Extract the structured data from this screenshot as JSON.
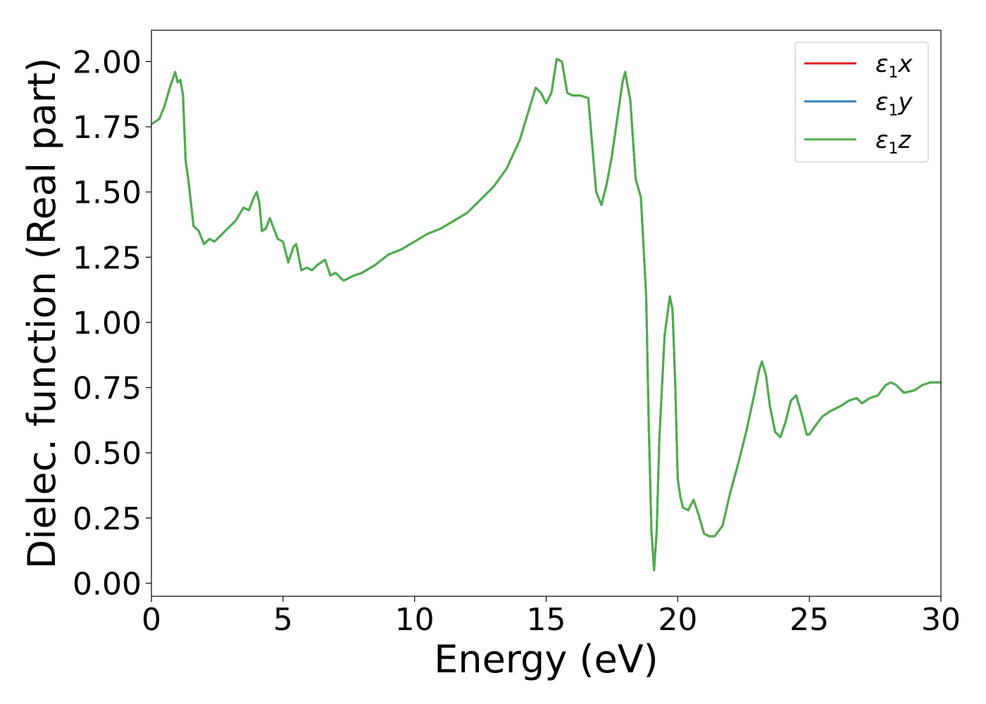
{
  "chart_data": {
    "type": "line",
    "xlabel": "Energy (eV)",
    "ylabel": "Dielec. function (Real part)",
    "xlim": [
      0,
      30
    ],
    "ylim": [
      -0.05,
      2.12
    ],
    "xticks": [
      0,
      5,
      10,
      15,
      20,
      25,
      30
    ],
    "yticks": [
      0.0,
      0.25,
      0.5,
      0.75,
      1.0,
      1.25,
      1.5,
      1.75,
      2.0
    ],
    "xtick_labels": [
      "0",
      "5",
      "10",
      "15",
      "20",
      "25",
      "30"
    ],
    "ytick_labels": [
      "0.00",
      "0.25",
      "0.50",
      "0.75",
      "1.00",
      "1.25",
      "1.50",
      "1.75",
      "2.00"
    ],
    "grid": false,
    "legend": {
      "placement": "top-right",
      "entries": [
        {
          "symbol": "ε",
          "sub": "1",
          "axis": "x",
          "color": "#e41a1c"
        },
        {
          "symbol": "ε",
          "sub": "1",
          "axis": "y",
          "color": "#377eb8"
        },
        {
          "symbol": "ε",
          "sub": "1",
          "axis": "z",
          "color": "#4daf4a"
        }
      ]
    },
    "series_colors": [
      "#e41a1c",
      "#377eb8",
      "#4daf4a"
    ],
    "x": [
      0.0,
      0.3,
      0.5,
      0.7,
      0.9,
      1.0,
      1.1,
      1.2,
      1.3,
      1.4,
      1.6,
      1.8,
      2.0,
      2.2,
      2.4,
      2.6,
      2.8,
      3.0,
      3.2,
      3.5,
      3.7,
      3.9,
      4.0,
      4.1,
      4.2,
      4.35,
      4.5,
      4.65,
      4.8,
      5.0,
      5.2,
      5.4,
      5.5,
      5.7,
      5.9,
      6.1,
      6.3,
      6.6,
      6.8,
      7.0,
      7.3,
      7.5,
      7.7,
      8.0,
      8.5,
      9.0,
      9.5,
      10.0,
      10.5,
      11.0,
      11.5,
      12.0,
      12.5,
      13.0,
      13.5,
      14.0,
      14.3,
      14.6,
      14.8,
      15.0,
      15.2,
      15.4,
      15.6,
      15.8,
      16.0,
      16.3,
      16.6,
      16.9,
      17.1,
      17.3,
      17.5,
      17.7,
      17.9,
      18.0,
      18.2,
      18.4,
      18.6,
      18.8,
      18.9,
      19.0,
      19.1,
      19.2,
      19.3,
      19.5,
      19.7,
      19.8,
      19.9,
      20.0,
      20.1,
      20.2,
      20.4,
      20.6,
      20.8,
      21.0,
      21.2,
      21.4,
      21.7,
      22.0,
      22.3,
      22.6,
      22.9,
      23.1,
      23.2,
      23.35,
      23.5,
      23.7,
      23.9,
      24.1,
      24.3,
      24.5,
      24.7,
      24.9,
      25.0,
      25.2,
      25.5,
      25.8,
      26.0,
      26.2,
      26.5,
      26.8,
      27.0,
      27.3,
      27.6,
      27.9,
      28.1,
      28.3,
      28.6,
      29.0,
      29.3,
      29.6,
      30.0
    ],
    "series": [
      {
        "values": [
          1.76,
          1.78,
          1.83,
          1.9,
          1.96,
          1.92,
          1.93,
          1.87,
          1.62,
          1.55,
          1.37,
          1.35,
          1.3,
          1.32,
          1.31,
          1.33,
          1.35,
          1.37,
          1.39,
          1.44,
          1.43,
          1.48,
          1.5,
          1.46,
          1.35,
          1.36,
          1.4,
          1.36,
          1.32,
          1.31,
          1.23,
          1.29,
          1.3,
          1.2,
          1.21,
          1.2,
          1.22,
          1.24,
          1.18,
          1.19,
          1.16,
          1.17,
          1.18,
          1.19,
          1.22,
          1.26,
          1.28,
          1.31,
          1.34,
          1.36,
          1.39,
          1.42,
          1.47,
          1.52,
          1.59,
          1.7,
          1.8,
          1.9,
          1.88,
          1.84,
          1.88,
          2.01,
          2.0,
          1.88,
          1.87,
          1.87,
          1.86,
          1.5,
          1.45,
          1.53,
          1.64,
          1.78,
          1.92,
          1.96,
          1.85,
          1.55,
          1.48,
          1.1,
          0.6,
          0.2,
          0.05,
          0.2,
          0.55,
          0.95,
          1.1,
          1.05,
          0.78,
          0.4,
          0.33,
          0.29,
          0.28,
          0.32,
          0.26,
          0.19,
          0.18,
          0.18,
          0.22,
          0.35,
          0.46,
          0.58,
          0.72,
          0.82,
          0.85,
          0.8,
          0.68,
          0.58,
          0.56,
          0.62,
          0.7,
          0.72,
          0.65,
          0.57,
          0.57,
          0.6,
          0.64,
          0.66,
          0.67,
          0.68,
          0.7,
          0.71,
          0.69,
          0.71,
          0.72,
          0.76,
          0.77,
          0.76,
          0.73,
          0.74,
          0.76,
          0.77,
          0.77
        ]
      },
      {
        "values": [
          1.76,
          1.78,
          1.83,
          1.9,
          1.96,
          1.92,
          1.93,
          1.87,
          1.62,
          1.55,
          1.37,
          1.35,
          1.3,
          1.32,
          1.31,
          1.33,
          1.35,
          1.37,
          1.39,
          1.44,
          1.43,
          1.48,
          1.5,
          1.46,
          1.35,
          1.36,
          1.4,
          1.36,
          1.32,
          1.31,
          1.23,
          1.29,
          1.3,
          1.2,
          1.21,
          1.2,
          1.22,
          1.24,
          1.18,
          1.19,
          1.16,
          1.17,
          1.18,
          1.19,
          1.22,
          1.26,
          1.28,
          1.31,
          1.34,
          1.36,
          1.39,
          1.42,
          1.47,
          1.52,
          1.59,
          1.7,
          1.8,
          1.9,
          1.88,
          1.84,
          1.88,
          2.01,
          2.0,
          1.88,
          1.87,
          1.87,
          1.86,
          1.5,
          1.45,
          1.53,
          1.64,
          1.78,
          1.92,
          1.96,
          1.85,
          1.55,
          1.48,
          1.1,
          0.6,
          0.2,
          0.05,
          0.2,
          0.55,
          0.95,
          1.1,
          1.05,
          0.78,
          0.4,
          0.33,
          0.29,
          0.28,
          0.32,
          0.26,
          0.19,
          0.18,
          0.18,
          0.22,
          0.35,
          0.46,
          0.58,
          0.72,
          0.82,
          0.85,
          0.8,
          0.68,
          0.58,
          0.56,
          0.62,
          0.7,
          0.72,
          0.65,
          0.57,
          0.57,
          0.6,
          0.64,
          0.66,
          0.67,
          0.68,
          0.7,
          0.71,
          0.69,
          0.71,
          0.72,
          0.76,
          0.77,
          0.76,
          0.73,
          0.74,
          0.76,
          0.77,
          0.77
        ]
      },
      {
        "values": [
          1.76,
          1.78,
          1.83,
          1.9,
          1.96,
          1.92,
          1.93,
          1.87,
          1.62,
          1.55,
          1.37,
          1.35,
          1.3,
          1.32,
          1.31,
          1.33,
          1.35,
          1.37,
          1.39,
          1.44,
          1.43,
          1.48,
          1.5,
          1.46,
          1.35,
          1.36,
          1.4,
          1.36,
          1.32,
          1.31,
          1.23,
          1.29,
          1.3,
          1.2,
          1.21,
          1.2,
          1.22,
          1.24,
          1.18,
          1.19,
          1.16,
          1.17,
          1.18,
          1.19,
          1.22,
          1.26,
          1.28,
          1.31,
          1.34,
          1.36,
          1.39,
          1.42,
          1.47,
          1.52,
          1.59,
          1.7,
          1.8,
          1.9,
          1.88,
          1.84,
          1.88,
          2.01,
          2.0,
          1.88,
          1.87,
          1.87,
          1.86,
          1.5,
          1.45,
          1.53,
          1.64,
          1.78,
          1.92,
          1.96,
          1.85,
          1.55,
          1.48,
          1.1,
          0.6,
          0.2,
          0.05,
          0.2,
          0.55,
          0.95,
          1.1,
          1.05,
          0.78,
          0.4,
          0.33,
          0.29,
          0.28,
          0.32,
          0.26,
          0.19,
          0.18,
          0.18,
          0.22,
          0.35,
          0.46,
          0.58,
          0.72,
          0.82,
          0.85,
          0.8,
          0.68,
          0.58,
          0.56,
          0.62,
          0.7,
          0.72,
          0.65,
          0.57,
          0.57,
          0.6,
          0.64,
          0.66,
          0.67,
          0.68,
          0.7,
          0.71,
          0.69,
          0.71,
          0.72,
          0.76,
          0.77,
          0.76,
          0.73,
          0.74,
          0.76,
          0.77,
          0.77
        ]
      }
    ]
  }
}
